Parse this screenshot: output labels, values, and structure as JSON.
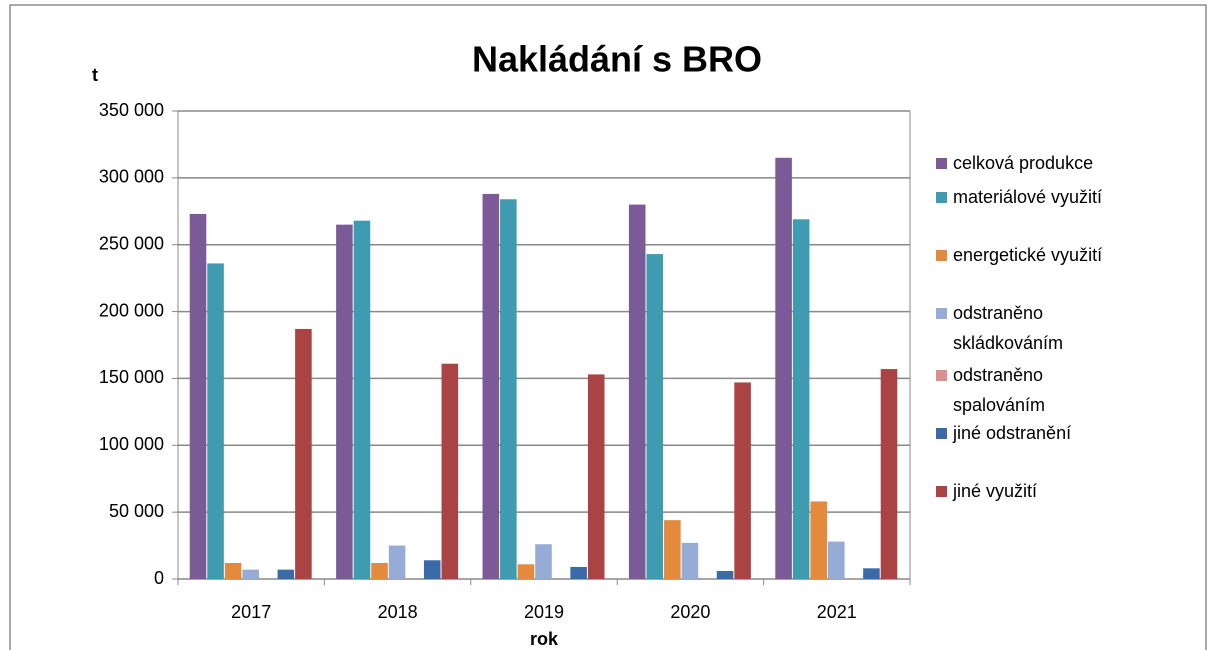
{
  "chart_data": {
    "type": "bar",
    "title": "Nakládání s BRO",
    "y_label": "t",
    "x_label": "rok",
    "categories": [
      "2017",
      "2018",
      "2019",
      "2020",
      "2021"
    ],
    "series": [
      {
        "name": "celková produkce",
        "color": "#7b5a98",
        "values": [
          273000,
          265000,
          288000,
          280000,
          315000
        ]
      },
      {
        "name": "materiálové využití",
        "color": "#3f9bb0",
        "values": [
          236000,
          268000,
          284000,
          243000,
          269000
        ]
      },
      {
        "name": "energetické využití",
        "color": "#e48a3c",
        "values": [
          12000,
          12000,
          11000,
          44000,
          58000
        ]
      },
      {
        "name": "odstraněno skládkováním",
        "color": "#96acd6",
        "values": [
          7000,
          25000,
          26000,
          27000,
          28000
        ]
      },
      {
        "name": "odstraněno spalováním",
        "color": "#d9918f",
        "values": [
          0,
          0,
          0,
          0,
          0
        ]
      },
      {
        "name": "jiné odstranění",
        "color": "#3b6aa8",
        "values": [
          7000,
          14000,
          9000,
          6000,
          8000
        ]
      },
      {
        "name": "jiné využití",
        "color": "#aa4444",
        "values": [
          187000,
          161000,
          153000,
          147000,
          157000
        ]
      }
    ],
    "ylim": [
      0,
      350000
    ],
    "yticks": [
      {
        "value": 0,
        "label": "0"
      },
      {
        "value": 50000,
        "label": "50 000"
      },
      {
        "value": 100000,
        "label": "100 000"
      },
      {
        "value": 150000,
        "label": "150 000"
      },
      {
        "value": 200000,
        "label": "200 000"
      },
      {
        "value": 250000,
        "label": "250 000"
      },
      {
        "value": 300000,
        "label": "300 000"
      },
      {
        "value": 350000,
        "label": "350 000"
      }
    ],
    "grid": true,
    "legend": "right"
  }
}
